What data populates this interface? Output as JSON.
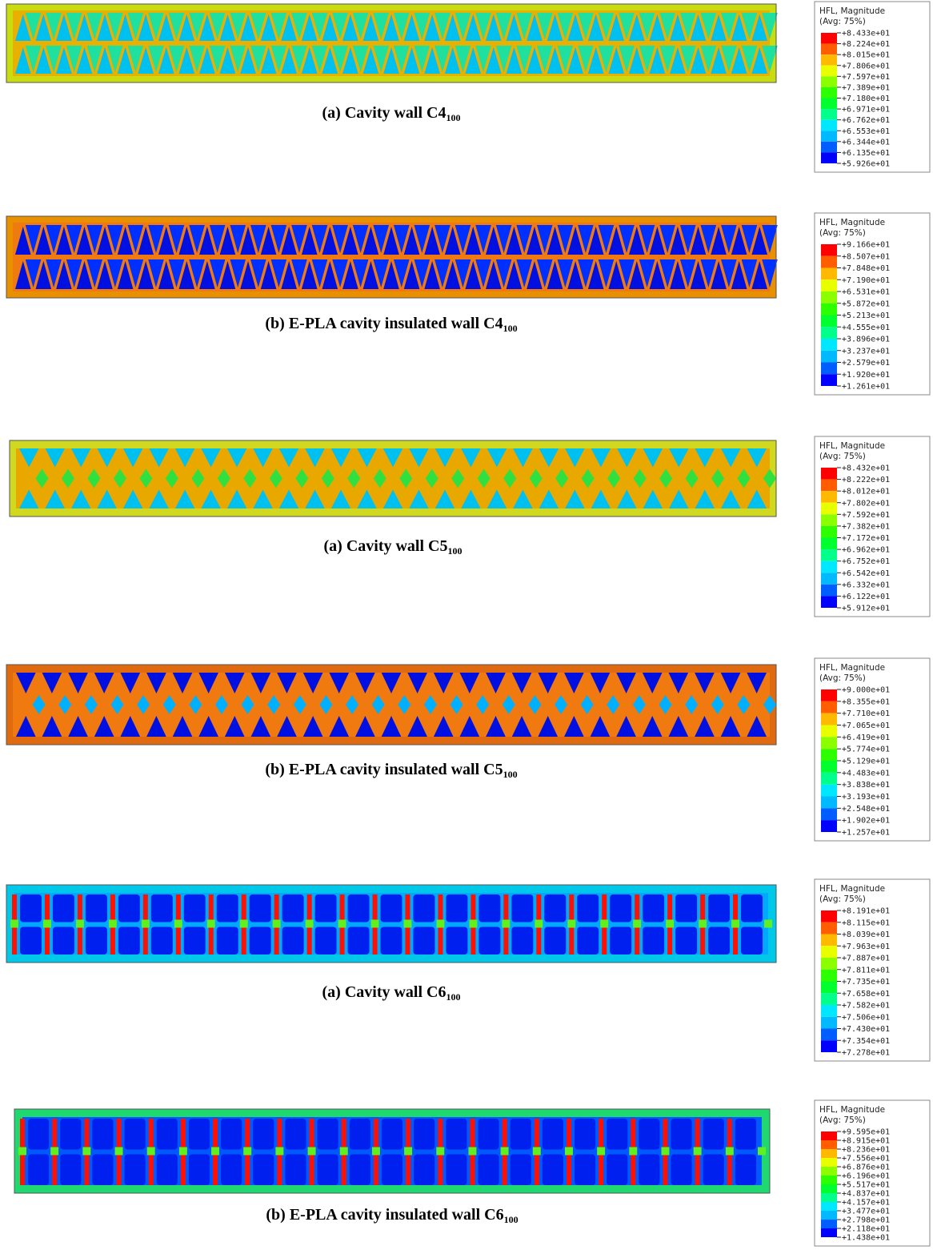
{
  "panels": [
    {
      "caption": {
        "text": "(a) Cavity wall C4",
        "sub": "100"
      },
      "legend": {
        "title": "HFL, Magnitude",
        "subtitle": "(Avg: 75%)",
        "labels": [
          "+8.433e+01",
          "+8.224e+01",
          "+8.015e+01",
          "+7.806e+01",
          "+7.597e+01",
          "+7.389e+01",
          "+7.180e+01",
          "+6.971e+01",
          "+6.762e+01",
          "+6.553e+01",
          "+6.344e+01",
          "+6.135e+01",
          "+5.926e+01"
        ]
      }
    },
    {
      "caption": {
        "text": "(b) E-PLA cavity insulated wall C4",
        "sub": "100"
      },
      "legend": {
        "title": "HFL, Magnitude",
        "subtitle": "(Avg: 75%)",
        "labels": [
          "+9.166e+01",
          "+8.507e+01",
          "+7.848e+01",
          "+7.190e+01",
          "+6.531e+01",
          "+5.872e+01",
          "+5.213e+01",
          "+4.555e+01",
          "+3.896e+01",
          "+3.237e+01",
          "+2.579e+01",
          "+1.920e+01",
          "+1.261e+01"
        ]
      }
    },
    {
      "caption": {
        "text": "(a) Cavity wall C5",
        "sub": "100"
      },
      "legend": {
        "title": "HFL, Magnitude",
        "subtitle": "(Avg: 75%)",
        "labels": [
          "+8.432e+01",
          "+8.222e+01",
          "+8.012e+01",
          "+7.802e+01",
          "+7.592e+01",
          "+7.382e+01",
          "+7.172e+01",
          "+6.962e+01",
          "+6.752e+01",
          "+6.542e+01",
          "+6.332e+01",
          "+6.122e+01",
          "+5.912e+01"
        ]
      }
    },
    {
      "caption": {
        "text": "(b) E-PLA cavity insulated wall C5",
        "sub": "100"
      },
      "legend": {
        "title": "HFL, Magnitude",
        "subtitle": "(Avg: 75%)",
        "labels": [
          "+9.000e+01",
          "+8.355e+01",
          "+7.710e+01",
          "+7.065e+01",
          "+6.419e+01",
          "+5.774e+01",
          "+5.129e+01",
          "+4.483e+01",
          "+3.838e+01",
          "+3.193e+01",
          "+2.548e+01",
          "+1.902e+01",
          "+1.257e+01"
        ]
      }
    },
    {
      "caption": {
        "text": "(a) Cavity wall C6",
        "sub": "100"
      },
      "legend": {
        "title": "HFL, Magnitude",
        "subtitle": "(Avg: 75%)",
        "labels": [
          "+8.191e+01",
          "+8.115e+01",
          "+8.039e+01",
          "+7.963e+01",
          "+7.887e+01",
          "+7.811e+01",
          "+7.735e+01",
          "+7.658e+01",
          "+7.582e+01",
          "+7.506e+01",
          "+7.430e+01",
          "+7.354e+01",
          "+7.278e+01"
        ]
      }
    },
    {
      "caption": {
        "text": "(b) E-PLA cavity insulated wall C6",
        "sub": "100"
      },
      "legend": {
        "title": "HFL, Magnitude",
        "subtitle": "(Avg: 75%)",
        "labels": [
          "+9.595e+01",
          "+8.915e+01",
          "+8.236e+01",
          "+7.556e+01",
          "+6.876e+01",
          "+6.196e+01",
          "+5.517e+01",
          "+4.837e+01",
          "+4.157e+01",
          "+3.477e+01",
          "+2.798e+01",
          "+2.118e+01",
          "+1.438e+01"
        ]
      }
    }
  ]
}
